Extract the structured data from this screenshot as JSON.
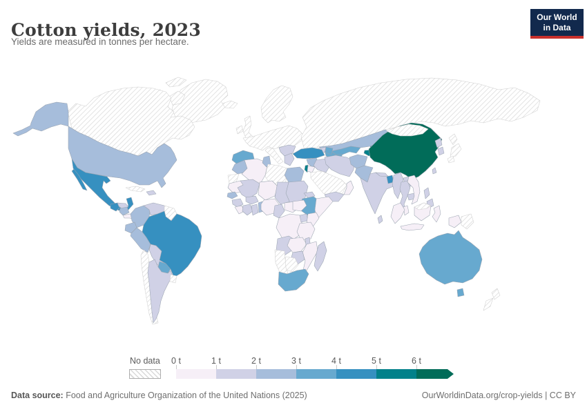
{
  "header": {
    "title": "Cotton yields, 2023",
    "subtitle": "Yields are measured in tonnes per hectare."
  },
  "logo": {
    "line1": "Our World",
    "line2": "in Data",
    "bg": "#12294d",
    "accent": "#c9302c"
  },
  "legend": {
    "no_data_label": "No data",
    "ticks": [
      "0 t",
      "1 t",
      "2 t",
      "3 t",
      "4 t",
      "5 t",
      "6 t"
    ],
    "colors": [
      "#f6eff7",
      "#d0d1e6",
      "#a6bddb",
      "#67a9cf",
      "#3690c0",
      "#02818a",
      "#016c59"
    ]
  },
  "footer": {
    "source_label": "Data source:",
    "source_text": " Food and Agriculture Organization of the United Nations (2025)",
    "rights": "OurWorldinData.org/crop-yields | CC BY"
  },
  "chart_data": {
    "type": "choropleth",
    "title": "Cotton yields, 2023",
    "unit": "tonnes per hectare",
    "bin_edges": [
      "0 t",
      "1 t",
      "2 t",
      "3 t",
      "4 t",
      "5 t",
      "6 t"
    ],
    "bin_colors": [
      "#f6eff7",
      "#d0d1e6",
      "#a6bddb",
      "#67a9cf",
      "#3690c0",
      "#02818a",
      "#016c59"
    ],
    "bin_meaning": "index i = i to i+1 tonnes/ha, index 6 = more than 6 t/ha",
    "no_data_label": "No data",
    "country_bins": {
      "greenland": "no_data",
      "canada": "no_data",
      "baffin": "no_data",
      "victoria-island": "no_data",
      "ellesmere": "no_data",
      "russia": "no_data",
      "mongolia": "no_data",
      "japan": "no_data",
      "saudi-arabia": "no_data",
      "libya": "no_data",
      "western-sahara": "no_data",
      "botswana": "no_data",
      "namibia": "no_data",
      "chile": "no_data",
      "uruguay": "no_data",
      "guianas": "no_data",
      "cuba": "no_data",
      "iceland": "no_data",
      "united-kingdom": "no_data",
      "ireland": "no_data",
      "scandinavia": "no_data",
      "europe-mainland": "no_data",
      "italy": "no_data",
      "papua-new-guinea": "no_data",
      "new-zealand": "no_data",
      "malaysia-borneo": "no_data",
      "algeria": 0,
      "mauritania": 0,
      "niger": 0,
      "nigeria": 0,
      "central-african-republic": 0,
      "south-sudan": 0,
      "dr-congo": 0,
      "kenya": 0,
      "tanzania": 0,
      "zambia": 0,
      "mozambique": 0,
      "somalia": 0,
      "sierra-leone-liberia": 0,
      "jordan": 0,
      "oman": 0,
      "vietnam": 0,
      "indonesia": 0,
      "malaysia-peninsula": 0,
      "costa-rica-panama": 0,
      "venezuela": 1,
      "bolivia": 1,
      "argentina": 1,
      "hispaniola": 1,
      "honduras": 1,
      "greece": 1,
      "balkans": 1,
      "georgia-armenia": 1,
      "iraq": 1,
      "iran": 1,
      "yemen": 1,
      "mali": 1,
      "chad": 1,
      "sudan": 1,
      "eritrea": 1,
      "guinea": 1,
      "burkina-faso": 1,
      "cote-divoire": 1,
      "ghana": 1,
      "cameroon": 1,
      "uganda": 1,
      "angola": 1,
      "malawi": 1,
      "zimbabwe": 1,
      "madagascar": 1,
      "india": 1,
      "nepal": 1,
      "sri-lanka": 1,
      "myanmar": 1,
      "thailand": 1,
      "laos": 1,
      "cambodia": 1,
      "north-korea": 1,
      "south-korea": 1,
      "taiwan": 1,
      "philippines": 1,
      "united-states": 2,
      "morocco": 2,
      "tunisia": 2,
      "egypt": 2,
      "senegal": 2,
      "nicaragua": 2,
      "colombia": 2,
      "ecuador": 2,
      "peru": 2,
      "kazakhstan": 2,
      "afghanistan": 2,
      "pakistan": 2,
      "syria": 2,
      "togo-benin": 2,
      "spain": 3,
      "azerbaijan": 3,
      "uzbekistan": 3,
      "turkmenistan": 3,
      "ethiopia": 3,
      "south-africa": 3,
      "australia": 3,
      "paraguay": 3,
      "mexico": 4,
      "guatemala": 4,
      "brazil": 4,
      "turkey": 4,
      "bangladesh": 4,
      "israel": 5,
      "kyrgyzstan": 5,
      "tajikistan": 5,
      "china": 6
    }
  }
}
